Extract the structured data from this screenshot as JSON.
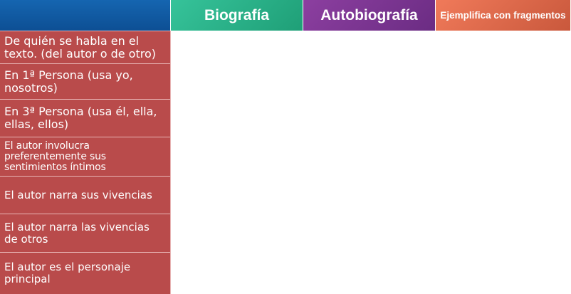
{
  "header": {
    "col1": "",
    "col2": "Biografía",
    "col3": "Autobiografía",
    "col4": "Ejemplifica con fragmentos"
  },
  "rows": [
    {
      "label": "De quién se habla en el texto. (del autor o de otro)"
    },
    {
      "label": "En 1ª Persona (usa yo, nosotros)"
    },
    {
      "label": "En 3ª Persona (usa él, ella, ellas, ellos)"
    },
    {
      "label": "El autor involucra preferentemente sus sentimientos íntimos"
    },
    {
      "label": "El autor narra sus vivencias"
    },
    {
      "label": "El autor narra las vivencias de otros"
    },
    {
      "label": "El autor es el personaje principal"
    }
  ],
  "colors": {
    "header_blank": "#1565b0",
    "header_bio": "#2bb085",
    "header_auto": "#7a3592",
    "header_ej": "#d9664a",
    "row_label": "#b94b4b"
  }
}
